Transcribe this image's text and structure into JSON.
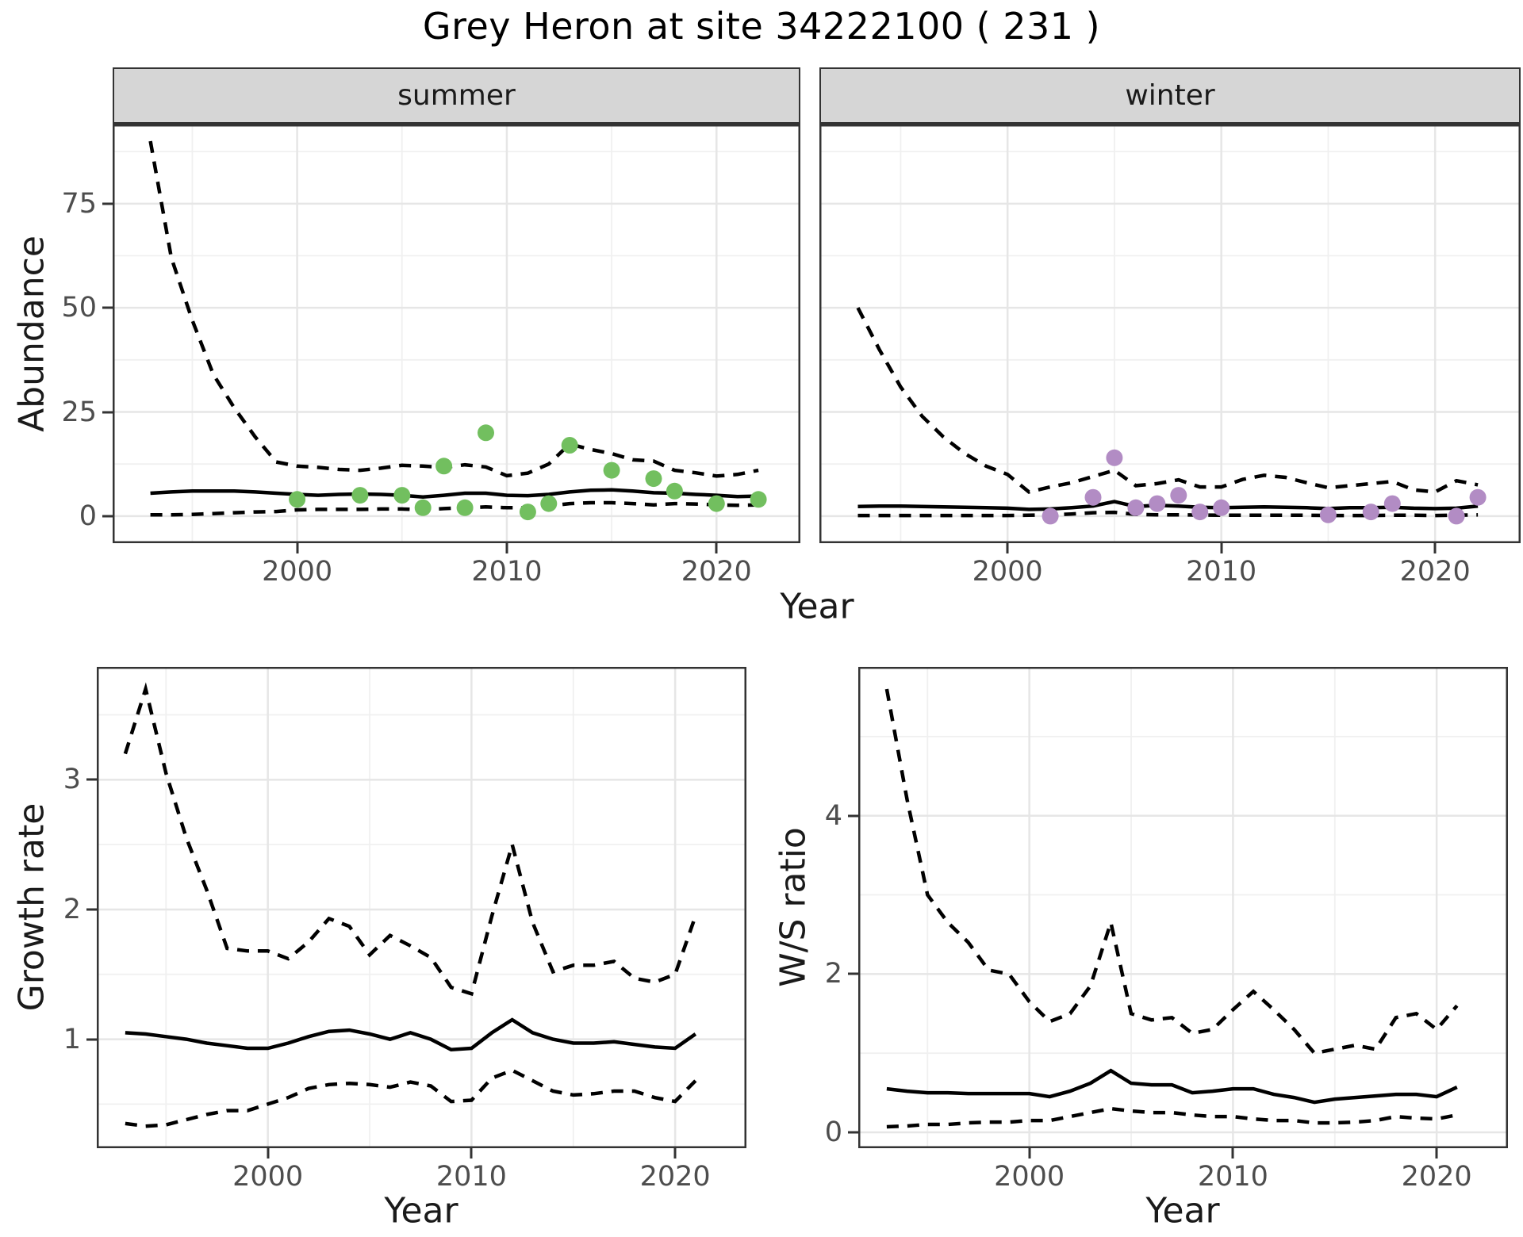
{
  "title": "Grey Heron at site 34222100 ( 231 )",
  "labels": {
    "abundance": "Abundance",
    "growth_rate": "Growth rate",
    "ws_ratio": "W/S ratio",
    "year": "Year"
  },
  "colors": {
    "summer_points": "#72bf5f",
    "winter_points": "#b28cc4",
    "line": "#000000",
    "strip_fill": "#d6d6d6",
    "panel_border": "#333333",
    "grid_major": "#e6e6e6",
    "grid_minor": "#f0f0f0",
    "tick_text": "#4d4d4d"
  },
  "chart_data": {
    "type": "line",
    "title": "Grey Heron at site 34222100 ( 231 )",
    "legend_position": "none",
    "panels": [
      {
        "id": "summer",
        "facet_label": "summer",
        "xlabel": "Year",
        "ylabel": "Abundance",
        "xlim": [
          1991.2,
          2024.0
        ],
        "ylim": [
          -6.5,
          94
        ],
        "xticks": [
          2000,
          2010,
          2020
        ],
        "xminor": [
          1995,
          2005,
          2015
        ],
        "yticks": [
          0,
          25,
          50,
          75
        ],
        "yminor": [
          12.5,
          37.5,
          62.5,
          87.5
        ],
        "show_y_axis": true,
        "years": [
          1993,
          1994,
          1995,
          1996,
          1997,
          1998,
          1999,
          2000,
          2001,
          2002,
          2003,
          2004,
          2005,
          2006,
          2007,
          2008,
          2009,
          2010,
          2011,
          2012,
          2013,
          2014,
          2015,
          2016,
          2017,
          2018,
          2019,
          2020,
          2021,
          2022
        ],
        "series": [
          {
            "name": "upper_ci",
            "style": "dashed",
            "values": [
              90,
              62,
              47,
              34,
              26,
              19,
              13,
              12,
              11.7,
              11.2,
              11,
              11.5,
              12.2,
              12,
              11.7,
              12.3,
              11.8,
              9.7,
              10.3,
              12.5,
              17.3,
              16,
              15,
              13.5,
              13.2,
              11,
              10.4,
              9.6,
              10,
              11
            ]
          },
          {
            "name": "median",
            "style": "solid",
            "values": [
              5.5,
              5.8,
              6,
              6,
              6,
              5.8,
              5.5,
              5.2,
              5,
              5.2,
              5.3,
              5.2,
              5,
              4.6,
              5,
              5.5,
              5.5,
              5,
              4.9,
              5.2,
              5.8,
              6.2,
              6.3,
              6,
              5.6,
              5.5,
              5.2,
              5,
              4.7,
              4.8
            ]
          },
          {
            "name": "lower_ci",
            "style": "dashed",
            "values": [
              0.3,
              0.3,
              0.4,
              0.6,
              0.8,
              1,
              1.1,
              1.5,
              1.6,
              1.6,
              1.6,
              1.7,
              1.7,
              1.5,
              1.8,
              2,
              2.2,
              2,
              2,
              2.4,
              3,
              3.2,
              3.2,
              3,
              2.7,
              3,
              2.9,
              2.7,
              2.6,
              2.7
            ]
          }
        ],
        "points": {
          "name": "observed_counts",
          "color": "#72bf5f",
          "years": [
            2000,
            2003,
            2005,
            2006,
            2007,
            2008,
            2009,
            2011,
            2012,
            2013,
            2015,
            2017,
            2018,
            2020,
            2022
          ],
          "values": [
            4,
            5,
            5,
            2,
            12,
            2,
            20,
            1,
            3,
            17,
            11,
            9,
            6,
            3,
            4
          ]
        }
      },
      {
        "id": "winter",
        "facet_label": "winter",
        "xlabel": "Year",
        "ylabel": "Abundance",
        "xlim": [
          1991.2,
          2024.0
        ],
        "ylim": [
          -6.5,
          94
        ],
        "xticks": [
          2000,
          2010,
          2020
        ],
        "xminor": [
          1995,
          2005,
          2015
        ],
        "yticks": [
          0,
          25,
          50,
          75
        ],
        "yminor": [
          12.5,
          37.5,
          62.5,
          87.5
        ],
        "show_y_axis": false,
        "years": [
          1993,
          1994,
          1995,
          1996,
          1997,
          1998,
          1999,
          2000,
          2001,
          2002,
          2003,
          2004,
          2005,
          2006,
          2007,
          2008,
          2009,
          2010,
          2011,
          2012,
          2013,
          2014,
          2015,
          2016,
          2017,
          2018,
          2019,
          2020,
          2021,
          2022
        ],
        "series": [
          {
            "name": "upper_ci",
            "style": "dashed",
            "values": [
              50,
              40,
              31,
              24,
              19,
              15,
              12,
              10,
              5.8,
              7,
              8,
              9.5,
              11,
              7.3,
              7.8,
              8.7,
              7,
              7,
              8.8,
              9.8,
              9.3,
              8,
              6.8,
              7.3,
              7.8,
              8.3,
              6.3,
              5.8,
              8.5,
              7.5
            ]
          },
          {
            "name": "median",
            "style": "solid",
            "values": [
              2.3,
              2.4,
              2.4,
              2.3,
              2.2,
              2.1,
              2,
              1.9,
              1.6,
              1.7,
              2,
              2.4,
              3.5,
              2.3,
              2.6,
              2.4,
              2.1,
              2,
              2.1,
              2.2,
              2.1,
              2,
              1.8,
              2,
              2,
              2.1,
              1.9,
              1.8,
              1.9,
              2.4
            ]
          },
          {
            "name": "lower_ci",
            "style": "dashed",
            "values": [
              0.15,
              0.15,
              0.15,
              0.15,
              0.15,
              0.15,
              0.15,
              0.15,
              0.2,
              0.3,
              0.5,
              0.8,
              0.9,
              0.4,
              0.3,
              0.3,
              0.25,
              0.2,
              0.2,
              0.2,
              0.2,
              0.2,
              0.15,
              0.15,
              0.15,
              0.2,
              0.2,
              0.15,
              0.2,
              0.3
            ]
          }
        ],
        "points": {
          "name": "observed_counts",
          "color": "#b28cc4",
          "years": [
            2002,
            2004,
            2005,
            2006,
            2007,
            2008,
            2009,
            2010,
            2015,
            2017,
            2018,
            2021,
            2022
          ],
          "values": [
            0,
            4.5,
            14,
            2,
            3,
            5,
            1,
            2,
            0.3,
            1,
            3,
            0,
            4.5
          ]
        }
      },
      {
        "id": "growth",
        "facet_label": "",
        "xlabel": "Year",
        "ylabel": "Growth rate",
        "xlim": [
          1991.6,
          2023.5
        ],
        "ylim": [
          0.16,
          3.87
        ],
        "xticks": [
          2000,
          2010,
          2020
        ],
        "xminor": [
          1995,
          2005,
          2015
        ],
        "yticks": [
          1,
          2,
          3
        ],
        "yminor": [
          0.5,
          1.5,
          2.5,
          3.5
        ],
        "show_y_axis": true,
        "years": [
          1993,
          1994,
          1995,
          1996,
          1997,
          1998,
          1999,
          2000,
          2001,
          2002,
          2003,
          2004,
          2005,
          2006,
          2007,
          2008,
          2009,
          2010,
          2011,
          2012,
          2013,
          2014,
          2015,
          2016,
          2017,
          2018,
          2019,
          2020,
          2021
        ],
        "series": [
          {
            "name": "upper_ci",
            "style": "dashed",
            "values": [
              3.2,
              3.7,
              3.05,
              2.55,
              2.15,
              1.7,
              1.68,
              1.68,
              1.62,
              1.75,
              1.93,
              1.87,
              1.65,
              1.8,
              1.72,
              1.63,
              1.4,
              1.35,
              1.95,
              2.5,
              1.9,
              1.52,
              1.57,
              1.57,
              1.6,
              1.47,
              1.44,
              1.5,
              1.95
            ]
          },
          {
            "name": "median",
            "style": "solid",
            "values": [
              1.05,
              1.04,
              1.02,
              1.0,
              0.97,
              0.95,
              0.93,
              0.93,
              0.97,
              1.02,
              1.06,
              1.07,
              1.04,
              1.0,
              1.05,
              1.0,
              0.92,
              0.93,
              1.05,
              1.15,
              1.05,
              1.0,
              0.97,
              0.97,
              0.98,
              0.96,
              0.94,
              0.93,
              1.04
            ]
          },
          {
            "name": "lower_ci",
            "style": "dashed",
            "values": [
              0.35,
              0.33,
              0.34,
              0.38,
              0.42,
              0.45,
              0.45,
              0.5,
              0.55,
              0.62,
              0.65,
              0.66,
              0.65,
              0.63,
              0.67,
              0.64,
              0.52,
              0.53,
              0.7,
              0.76,
              0.68,
              0.6,
              0.57,
              0.58,
              0.6,
              0.6,
              0.55,
              0.52,
              0.68
            ]
          }
        ],
        "points": null
      },
      {
        "id": "ws",
        "facet_label": "",
        "xlabel": "Year",
        "ylabel": "W/S ratio",
        "xlim": [
          1991.6,
          2023.5
        ],
        "ylim": [
          -0.2,
          5.88
        ],
        "xticks": [
          2000,
          2010,
          2020
        ],
        "xminor": [
          1995,
          2005,
          2015
        ],
        "yticks": [
          0,
          2,
          4
        ],
        "yminor": [
          1,
          3,
          5
        ],
        "show_y_axis": true,
        "years": [
          1993,
          1994,
          1995,
          1996,
          1997,
          1998,
          1999,
          2000,
          2001,
          2002,
          2003,
          2004,
          2005,
          2006,
          2007,
          2008,
          2009,
          2010,
          2011,
          2012,
          2013,
          2014,
          2015,
          2016,
          2017,
          2018,
          2019,
          2020,
          2021
        ],
        "series": [
          {
            "name": "upper_ci",
            "style": "dashed",
            "values": [
              5.6,
              4.2,
              3.0,
              2.65,
              2.4,
              2.05,
              2.0,
              1.65,
              1.4,
              1.5,
              1.85,
              2.65,
              1.5,
              1.42,
              1.45,
              1.25,
              1.3,
              1.55,
              1.78,
              1.55,
              1.3,
              1.0,
              1.05,
              1.1,
              1.05,
              1.45,
              1.5,
              1.3,
              1.6
            ]
          },
          {
            "name": "median",
            "style": "solid",
            "values": [
              0.55,
              0.52,
              0.5,
              0.5,
              0.49,
              0.49,
              0.49,
              0.49,
              0.45,
              0.52,
              0.62,
              0.78,
              0.62,
              0.6,
              0.6,
              0.5,
              0.52,
              0.55,
              0.55,
              0.48,
              0.44,
              0.38,
              0.42,
              0.44,
              0.46,
              0.48,
              0.48,
              0.45,
              0.57
            ]
          },
          {
            "name": "lower_ci",
            "style": "dashed",
            "values": [
              0.07,
              0.08,
              0.1,
              0.1,
              0.12,
              0.13,
              0.13,
              0.15,
              0.15,
              0.2,
              0.25,
              0.3,
              0.27,
              0.25,
              0.25,
              0.22,
              0.2,
              0.2,
              0.17,
              0.15,
              0.15,
              0.12,
              0.12,
              0.13,
              0.15,
              0.2,
              0.18,
              0.17,
              0.22
            ]
          }
        ],
        "points": null
      }
    ]
  }
}
